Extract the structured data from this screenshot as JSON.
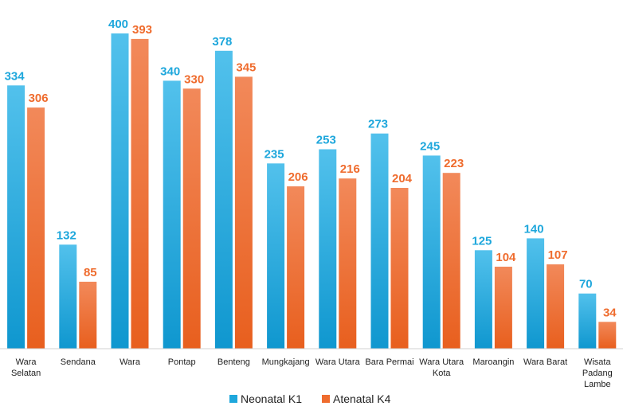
{
  "chart_data": {
    "type": "bar",
    "title": "",
    "xlabel": "",
    "ylabel": "",
    "ylim": [
      0,
      400
    ],
    "grid": false,
    "legend_position": "bottom",
    "categories": [
      [
        "Wara",
        "Selatan"
      ],
      [
        "Sendana"
      ],
      [
        "Wara"
      ],
      [
        "Pontap"
      ],
      [
        "Benteng"
      ],
      [
        "Mungkajang"
      ],
      [
        "Wara Utara"
      ],
      [
        "Bara Permai"
      ],
      [
        "Wara Utara",
        "Kota"
      ],
      [
        "Maroangin"
      ],
      [
        "Wara Barat"
      ],
      [
        "Wisata",
        "Padang",
        "Lambe"
      ]
    ],
    "series": [
      {
        "name": "Neonatal K1",
        "color": "#1ea7dc",
        "label_color": "#1ea7dc",
        "values": [
          334,
          132,
          400,
          340,
          378,
          235,
          253,
          273,
          245,
          125,
          140,
          70
        ]
      },
      {
        "name": "Atenatal K4",
        "color": "#ef6c2e",
        "label_color": "#ef6c2e",
        "values": [
          306,
          85,
          393,
          330,
          345,
          206,
          216,
          204,
          223,
          104,
          107,
          34
        ]
      }
    ]
  }
}
